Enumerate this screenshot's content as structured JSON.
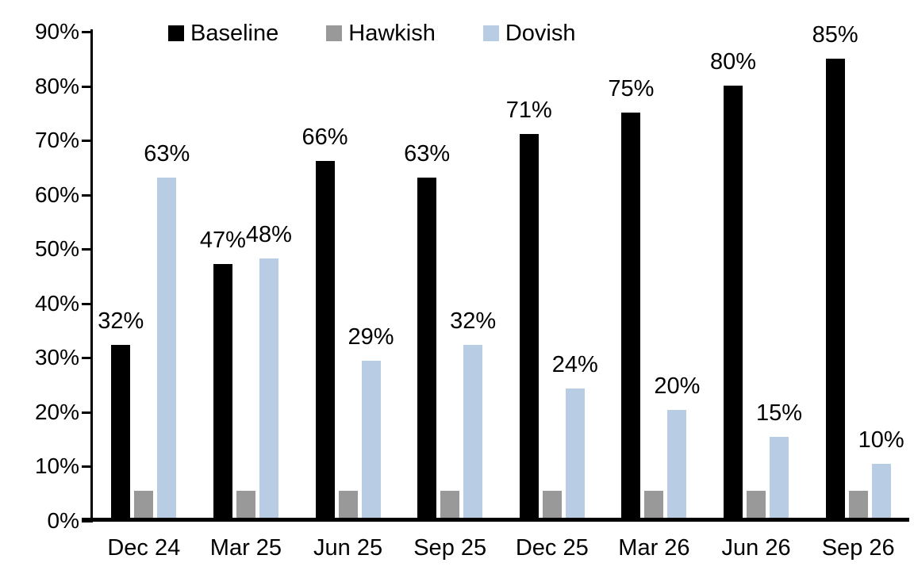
{
  "chart_data": {
    "type": "bar",
    "title": "",
    "categories": [
      "Dec 24",
      "Mar 25",
      "Jun 25",
      "Sep 25",
      "Dec 25",
      "Mar 26",
      "Jun 26",
      "Sep 26"
    ],
    "series": [
      {
        "name": "Baseline",
        "color": "#000000",
        "values": [
          32,
          47,
          66,
          63,
          71,
          75,
          80,
          85
        ],
        "labels": [
          "32%",
          "47%",
          "66%",
          "63%",
          "71%",
          "75%",
          "80%",
          "85%"
        ],
        "show_labels": true
      },
      {
        "name": "Hawkish",
        "color": "#999999",
        "values": [
          5,
          5,
          5,
          5,
          5,
          5,
          5,
          5
        ],
        "labels": [],
        "show_labels": false
      },
      {
        "name": "Dovish",
        "color": "#b8cce4",
        "values": [
          63,
          48,
          29,
          32,
          24,
          20,
          15,
          10
        ],
        "labels": [
          "63%",
          "48%",
          "29%",
          "32%",
          "24%",
          "20%",
          "15%",
          "10%"
        ],
        "show_labels": true
      }
    ],
    "xlabel": "",
    "ylabel": "",
    "y_axis": {
      "min": 0,
      "max": 90,
      "step": 10,
      "tick_labels": [
        "0%",
        "10%",
        "20%",
        "30%",
        "40%",
        "50%",
        "60%",
        "70%",
        "80%",
        "90%"
      ]
    },
    "legend_position": "top",
    "grid": false,
    "background_color": "#ffffff",
    "axis_color": "#000000",
    "value_unit": "%"
  }
}
